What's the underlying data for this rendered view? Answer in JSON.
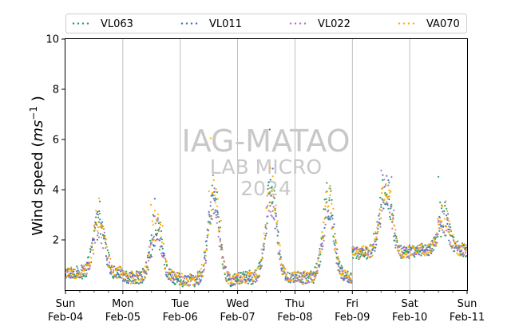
{
  "chart_data": {
    "type": "scatter",
    "title": "",
    "xlabel": "",
    "ylabel": "Wind speed (ms⁻¹ )",
    "ylabel_base": "Wind speed (",
    "ylabel_unit": "ms",
    "ylabel_exp": "−1",
    "ylabel_tail": " )",
    "ylim": [
      0,
      10
    ],
    "yticks": [
      "2",
      "4",
      "6",
      "8",
      "10"
    ],
    "xlim": [
      "2024-02-04",
      "2024-02-11"
    ],
    "xticks": [
      {
        "day": "Sun",
        "date": "Feb-04"
      },
      {
        "day": "Mon",
        "date": "Feb-05"
      },
      {
        "day": "Tue",
        "date": "Feb-06"
      },
      {
        "day": "Wed",
        "date": "Feb-07"
      },
      {
        "day": "Thu",
        "date": "Feb-08"
      },
      {
        "day": "Fri",
        "date": "Feb-09"
      },
      {
        "day": "Sat",
        "date": "Feb-10"
      },
      {
        "day": "Sun",
        "date": "Feb-11"
      }
    ],
    "grid": "vertical-day-lines",
    "legend_position": "top",
    "watermark": [
      "IAG-MATAO",
      "LAB MICRO",
      "2024"
    ],
    "series": [
      {
        "name": "VL063",
        "color": "#2ca05a",
        "seed": 11,
        "amp": 1.0,
        "noise": 0.55
      },
      {
        "name": "VL011",
        "color": "#4a76b8",
        "seed": 23,
        "amp": 0.95,
        "noise": 0.45
      },
      {
        "name": "VL022",
        "color": "#b07ab8",
        "seed": 37,
        "amp": 0.9,
        "noise": 0.45
      },
      {
        "name": "VA070",
        "color": "#ffb000",
        "seed": 53,
        "amp": 1.05,
        "noise": 0.5
      }
    ],
    "daily_profile": [
      {
        "day": 0,
        "base": 0.7,
        "peak": 2.9
      },
      {
        "day": 1,
        "base": 0.5,
        "peak": 2.6
      },
      {
        "day": 2,
        "base": 0.4,
        "peak": 3.8
      },
      {
        "day": 3,
        "base": 0.5,
        "peak": 4.0
      },
      {
        "day": 4,
        "base": 0.5,
        "peak": 3.6
      },
      {
        "day": 5,
        "base": 1.5,
        "peak": 4.2
      },
      {
        "day": 6,
        "base": 1.6,
        "peak": 3.0
      }
    ]
  }
}
